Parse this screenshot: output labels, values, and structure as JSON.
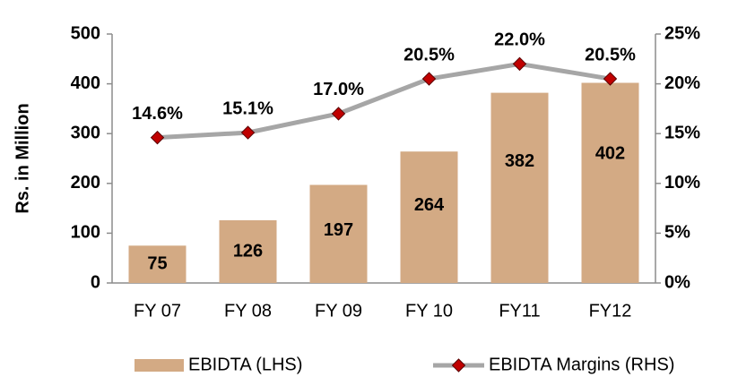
{
  "chart_data": {
    "type": "bar",
    "ylabel": "Rs. in Million",
    "categories": [
      "FY 07",
      "FY 08",
      "FY 09",
      "FY 10",
      "FY11",
      "FY12"
    ],
    "series": [
      {
        "name": "EBIDTA (LHS)",
        "type": "bar",
        "color": "#d3aa84",
        "values": [
          75,
          126,
          197,
          264,
          382,
          402
        ]
      },
      {
        "name": "EBIDTA Margins (RHS)",
        "type": "line",
        "axis": "y2",
        "color": "#a6a6a6",
        "marker_color": "#c00000",
        "values": [
          14.6,
          15.1,
          17.0,
          20.5,
          22.0,
          20.5
        ],
        "value_labels": [
          "14.6%",
          "15.1%",
          "17.0%",
          "20.5%",
          "22.0%",
          "20.5%"
        ]
      }
    ],
    "ylim": [
      0,
      500
    ],
    "yticks": [
      0,
      100,
      200,
      300,
      400,
      500
    ],
    "y2lim": [
      0,
      25
    ],
    "y2ticks": [
      {
        "value": 0,
        "label": "0%"
      },
      {
        "value": 5,
        "label": "5%"
      },
      {
        "value": 10,
        "label": "10%"
      },
      {
        "value": 15,
        "label": "15%"
      },
      {
        "value": 20,
        "label": "20%"
      },
      {
        "value": 25,
        "label": "25%"
      }
    ],
    "grid": false,
    "legend": "bottom"
  }
}
